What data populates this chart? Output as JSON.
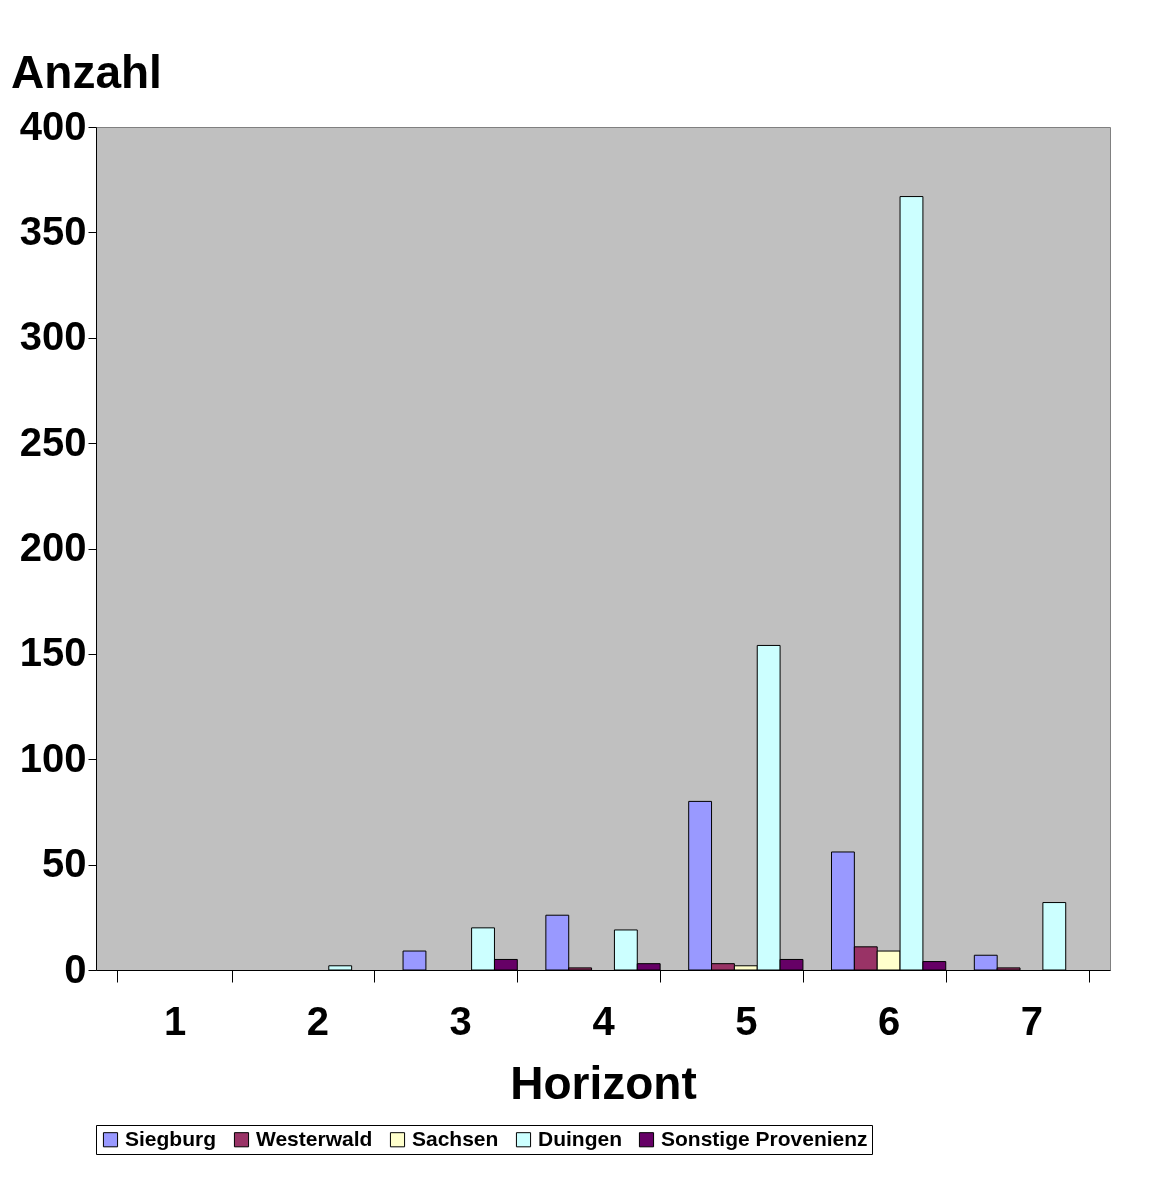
{
  "chart_data": {
    "type": "bar",
    "xlabel": "Horizont",
    "ylabel": "Anzahl",
    "categories": [
      "1",
      "2",
      "3",
      "4",
      "5",
      "6",
      "7"
    ],
    "series": [
      {
        "name": "Siegburg",
        "color": "#9999ff",
        "values": [
          0,
          0,
          9,
          26,
          80,
          56,
          7
        ]
      },
      {
        "name": "Westerwald",
        "color": "#993366",
        "values": [
          0,
          0,
          0,
          1,
          3,
          11,
          1
        ]
      },
      {
        "name": "Sachsen",
        "color": "#ffffcc",
        "values": [
          0,
          0,
          0,
          0,
          2,
          9,
          0
        ]
      },
      {
        "name": "Duingen",
        "color": "#ccffff",
        "values": [
          0,
          2,
          20,
          19,
          154,
          367,
          32
        ]
      },
      {
        "name": "Sonstige Provenienz",
        "color": "#660066",
        "values": [
          0,
          0,
          5,
          3,
          5,
          4,
          0
        ]
      }
    ],
    "ylim": [
      0,
      400
    ],
    "yticks": [
      0,
      50,
      100,
      150,
      200,
      250,
      300,
      350,
      400
    ],
    "grid": false,
    "legend": "bottom"
  }
}
